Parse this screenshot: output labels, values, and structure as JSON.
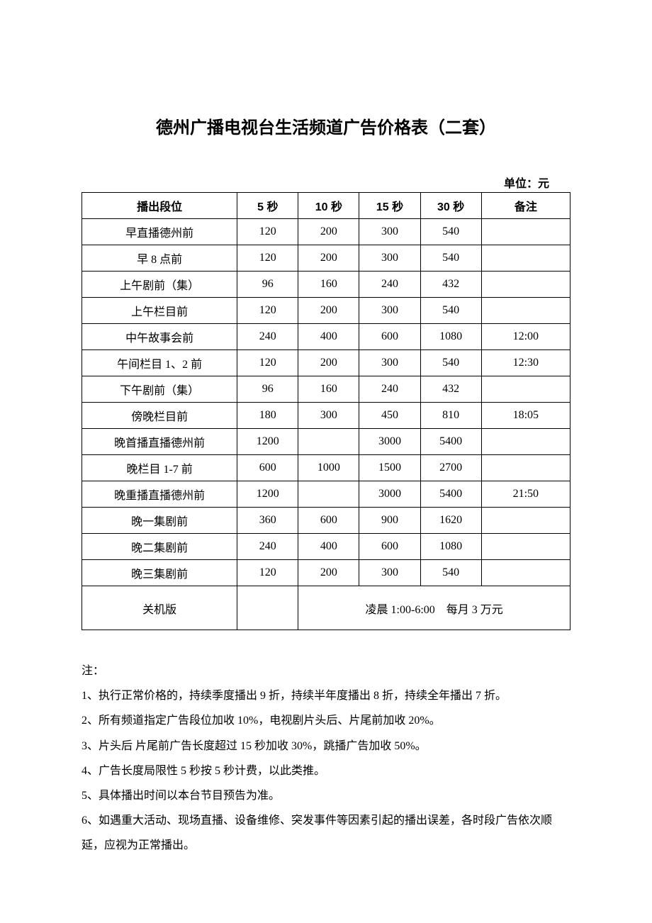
{
  "title": "德州广播电视台生活频道广告价格表（二套）",
  "unit_label": "单位：元",
  "table": {
    "columns": [
      "播出段位",
      "5 秒",
      "10 秒",
      "15 秒",
      "30 秒",
      "备注"
    ],
    "rows": [
      [
        "早直播德州前",
        "120",
        "200",
        "300",
        "540",
        ""
      ],
      [
        "早 8 点前",
        "120",
        "200",
        "300",
        "540",
        ""
      ],
      [
        "上午剧前（集）",
        "96",
        "160",
        "240",
        "432",
        ""
      ],
      [
        "上午栏目前",
        "120",
        "200",
        "300",
        "540",
        ""
      ],
      [
        "中午故事会前",
        "240",
        "400",
        "600",
        "1080",
        "12:00"
      ],
      [
        "午间栏目 1、2 前",
        "120",
        "200",
        "300",
        "540",
        "12:30"
      ],
      [
        "下午剧前（集）",
        "96",
        "160",
        "240",
        "432",
        ""
      ],
      [
        "傍晚栏目前",
        "180",
        "300",
        "450",
        "810",
        "18:05"
      ],
      [
        "晚首播直播德州前",
        "1200",
        "",
        "3000",
        "5400",
        ""
      ],
      [
        "晚栏目 1-7 前",
        "600",
        "1000",
        "1500",
        "2700",
        ""
      ],
      [
        "晚重播直播德州前",
        "1200",
        "",
        "3000",
        "5400",
        "21:50"
      ],
      [
        "晚一集剧前",
        "360",
        "600",
        "900",
        "1620",
        ""
      ],
      [
        "晚二集剧前",
        "240",
        "400",
        "600",
        "1080",
        ""
      ],
      [
        "晚三集剧前",
        "120",
        "200",
        "300",
        "540",
        ""
      ]
    ],
    "last_row": {
      "label": "关机版",
      "col5": "",
      "merged": "凌晨 1:00-6:00　每月 3 万元"
    }
  },
  "notes_heading": "注：",
  "notes": [
    "1、执行正常价格的，持续季度播出 9 折，持续半年度播出 8 折，持续全年播出 7 折。",
    "2、所有频道指定广告段位加收 10%，电视剧片头后、片尾前加收 20%。",
    "3、片头后 片尾前广告长度超过 15 秒加收 30%，跳播广告加收 50%。",
    "4、广告长度局限性 5 秒按 5 秒计费，以此类推。",
    "5、具体播出时间以本台节目预告为准。",
    "6、如遇重大活动、现场直播、设备维修、突发事件等因素引起的播出误差，各时段广告依次顺延，应视为正常播出。"
  ]
}
